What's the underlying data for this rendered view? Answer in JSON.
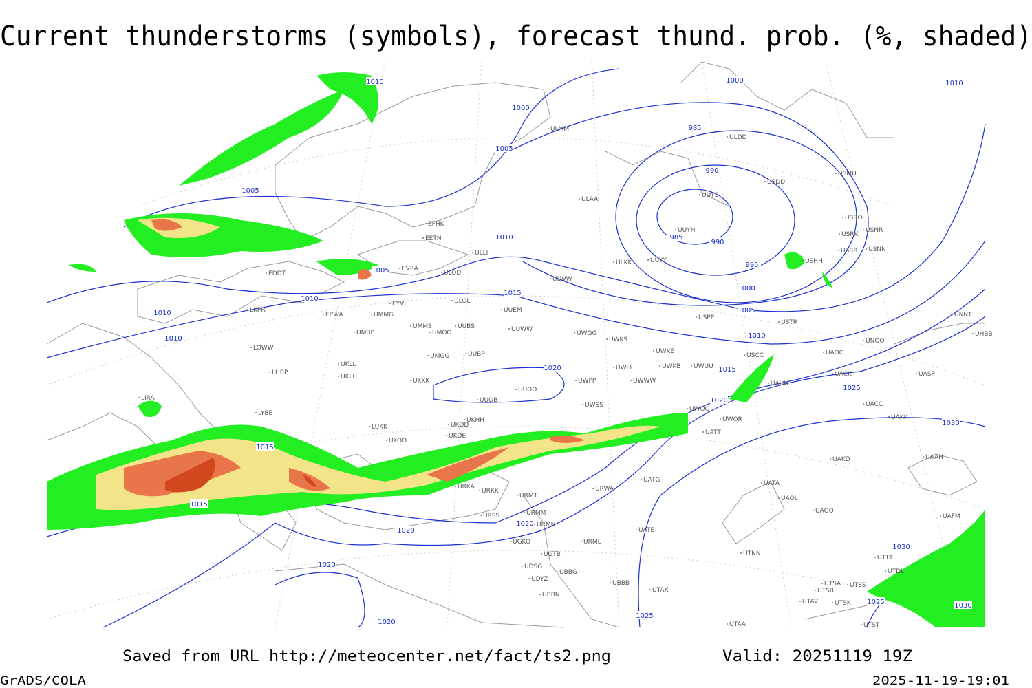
{
  "header": {
    "title": "Current thunderstorms (symbols), forecast thund. prob. (%, shaded)"
  },
  "isobar_labels": [
    1010,
    1000,
    1010,
    1000,
    985,
    1005,
    990,
    1005,
    985,
    990,
    1010,
    1005,
    995,
    1000,
    1010,
    1015,
    1010,
    1005,
    1010,
    1010,
    1020,
    1015,
    1020,
    1025,
    1030,
    1015,
    1015,
    1020,
    1020,
    1030,
    1020,
    1025,
    1030,
    1025,
    1020
  ],
  "stations": [
    "ULMM",
    "ULDD",
    "USDD",
    "USMU",
    "UUYS",
    "ULAA",
    "EFHK",
    "EETN",
    "UUYH",
    "USRO",
    "USRK",
    "USNR",
    "USRR",
    "USNN",
    "ULLI",
    "USHH",
    "ULKK",
    "UUYY",
    "EVRA",
    "ULOD",
    "EDDT",
    "ULWW",
    "EYVI",
    "ULOL",
    "LKPR",
    "UUEM",
    "EPWA",
    "UMMG",
    "USPP",
    "USTR",
    "UNNT",
    "UMMS",
    "UUBS",
    "UMBB",
    "UMOO",
    "UUWW",
    "UWGG",
    "UWKS",
    "UNOO",
    "UHBB",
    "LOWW",
    "UWKE",
    "UUBP",
    "UMGG",
    "USCC",
    "UAOO",
    "UKLL",
    "UWKB",
    "UWUU",
    "UWLL",
    "LHBP",
    "UKLI",
    "UWPP",
    "UWWW",
    "UACK",
    "UASP",
    "UKKK",
    "UAUU",
    "UUOO",
    "UUOB",
    "LIRA",
    "UWSS",
    "UACC",
    "LYBE",
    "UWOO",
    "UKHH",
    "UWOR",
    "UAKK",
    "UKDD",
    "LUKK",
    "UKDE",
    "UATT",
    "UKOO",
    "UAKD",
    "UAAH",
    "URKA",
    "URKK",
    "UATG",
    "UATA",
    "URMT",
    "UAOL",
    "URWA",
    "UAOO",
    "UAFM",
    "URSS",
    "URMM",
    "URMN",
    "UATE",
    "UGKO",
    "URML",
    "UGTB",
    "UTNN",
    "UTTT",
    "UTDL",
    "UDSG",
    "UBBG",
    "UDYZ",
    "UTSA",
    "UTSS",
    "UBBB",
    "UTAK",
    "UTSB",
    "UBBN",
    "UTAV",
    "UTSK",
    "UTAA",
    "UTST"
  ],
  "footer": {
    "source": "Saved from URL http://meteocenter.net/fact/ts2.png",
    "valid": "Valid: 20251119 19Z",
    "software": "GrADS/COLA",
    "timestamp": "2025-11-19-19:01"
  }
}
